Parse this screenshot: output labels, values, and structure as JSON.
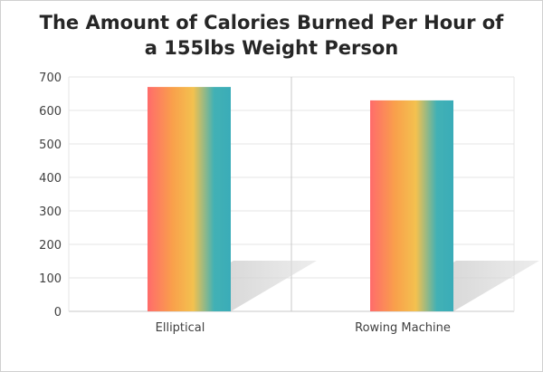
{
  "chart_data": {
    "type": "bar",
    "title_lines": [
      "The Amount of Calories Burned Per Hour of",
      "a 155lbs Weight Person"
    ],
    "categories": [
      "Elliptical",
      "Rowing Machine"
    ],
    "values": [
      670,
      630
    ],
    "xlabel": "",
    "ylabel": "",
    "ylim": [
      0,
      700
    ],
    "yticks": [
      0,
      100,
      200,
      300,
      400,
      500,
      600,
      700
    ],
    "grid": true,
    "legend": "none",
    "bar_gradient": [
      "#ff6b6b",
      "#f9a04b",
      "#f3c14f",
      "#42b1b5",
      "#3aacb8"
    ],
    "colors": {
      "grid": "#e6e6e6",
      "axis": "#c8c8c8",
      "shadow": "#c9c9c9"
    }
  }
}
